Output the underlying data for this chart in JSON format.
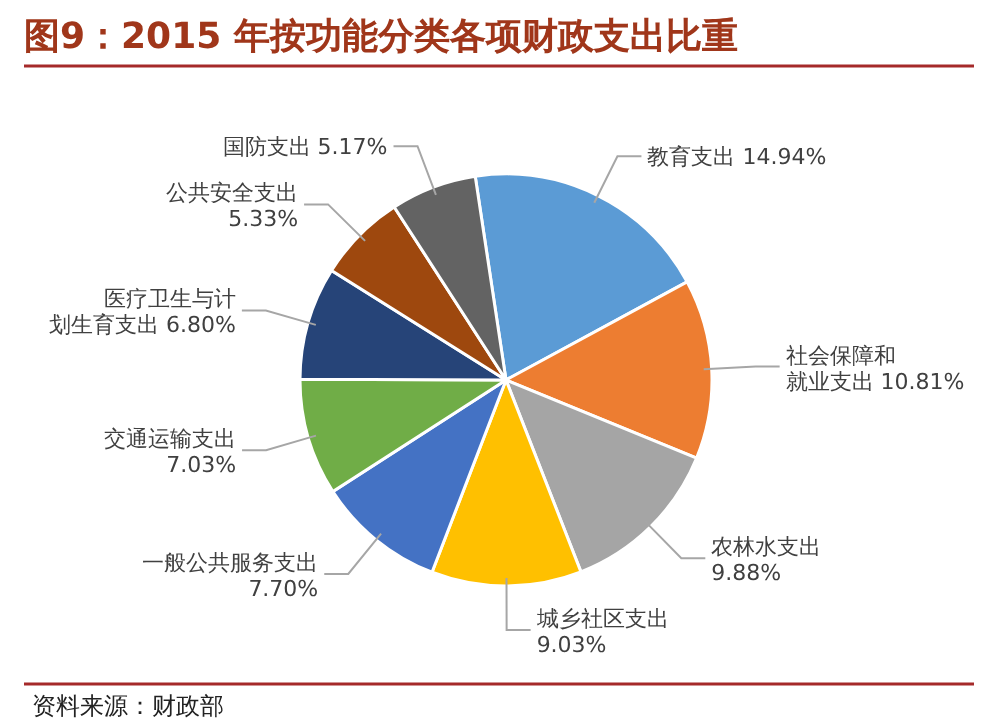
{
  "chart_data": {
    "type": "pie",
    "title": "图9：2015 年按功能分类各项财政支出比重",
    "categories": [
      "教育支出",
      "社会保障和就业支出",
      "农林水支出",
      "城乡社区支出",
      "一般公共服务支出",
      "交通运输支出",
      "医疗卫生与计划生育支出",
      "公共安全支出",
      "国防支出"
    ],
    "values": [
      14.94,
      10.81,
      9.88,
      9.03,
      7.7,
      7.03,
      6.8,
      5.33,
      5.17
    ],
    "value_labels": [
      "14.94%",
      "10.81%",
      "9.88%",
      "9.03%",
      "7.70%",
      "7.03%",
      "6.80%",
      "5.33%",
      "5.17%"
    ],
    "colors": [
      "#5b9bd5",
      "#ed7d31",
      "#a5a5a5",
      "#ffc000",
      "#4472c4",
      "#70ad47",
      "#264478",
      "#9e480e",
      "#636363"
    ],
    "annotations": [
      "资料来源：财政部"
    ]
  }
}
